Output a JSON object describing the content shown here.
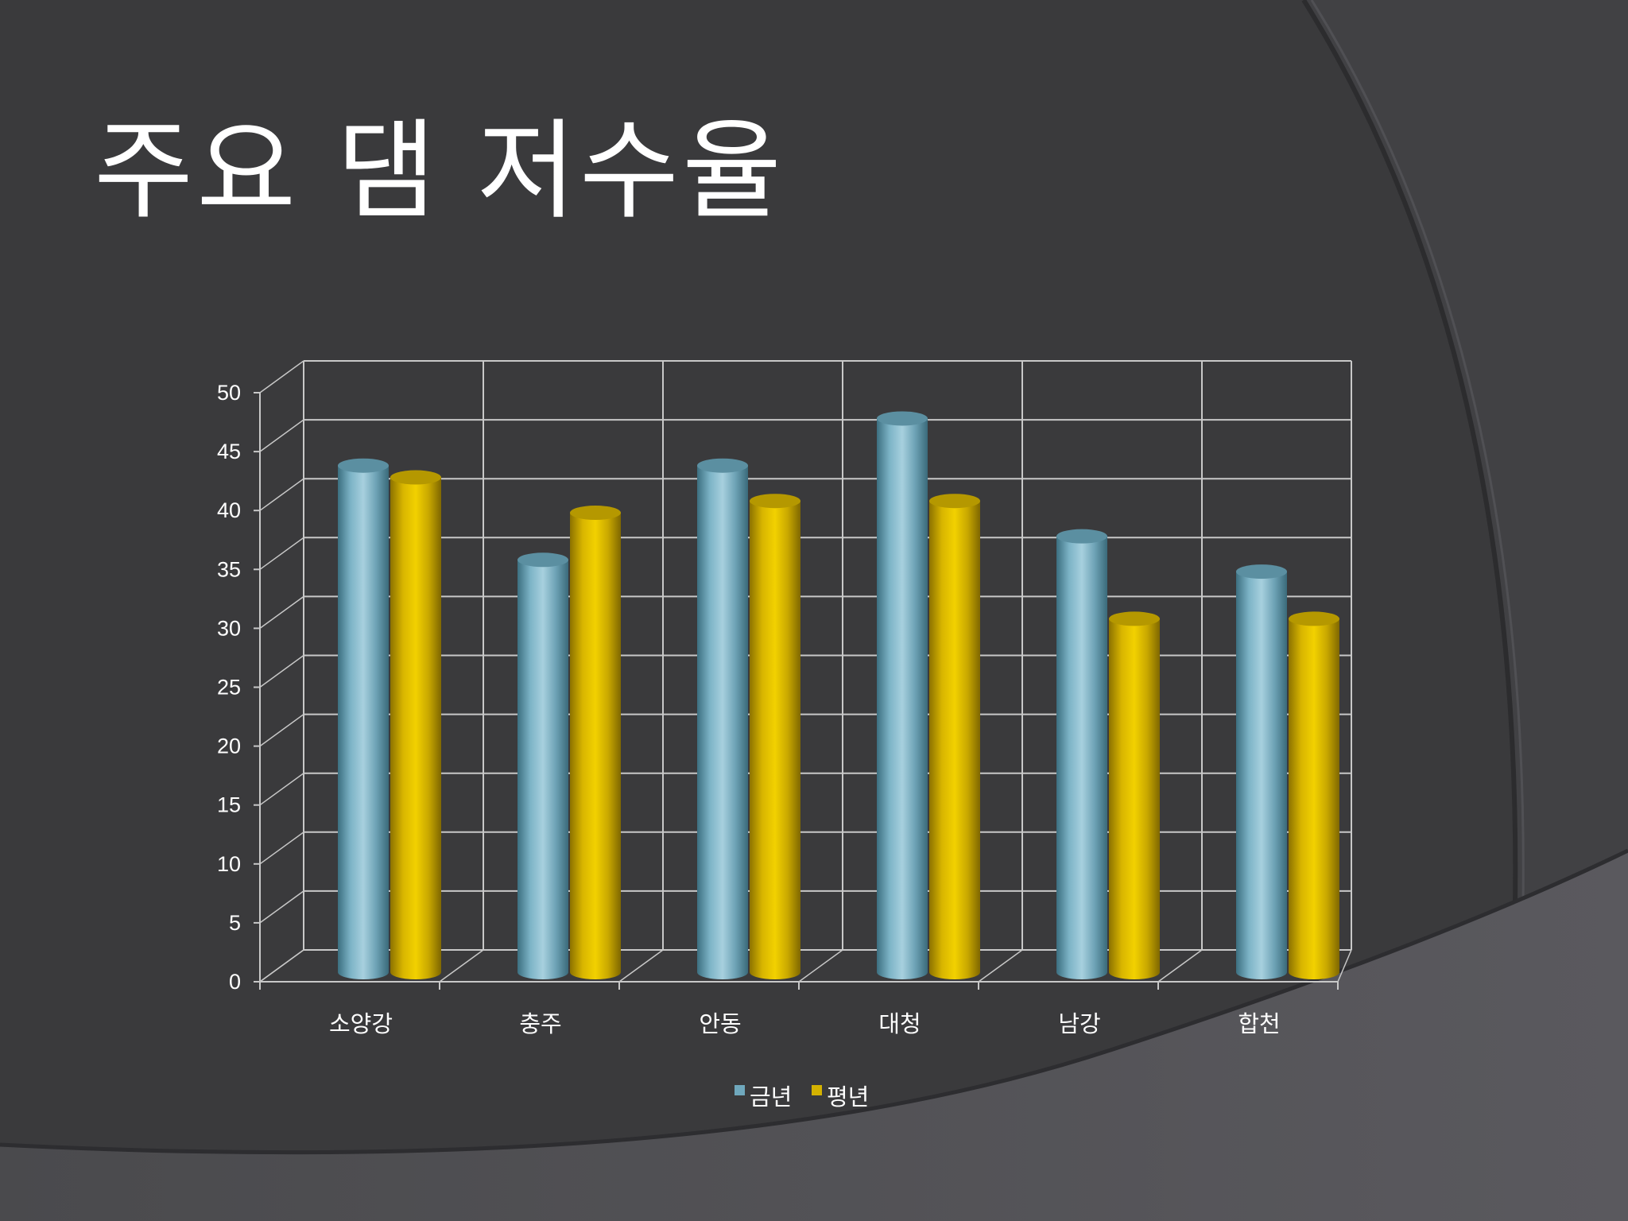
{
  "slide": {
    "title": "주요 댐 저수율"
  },
  "colors": {
    "background": "#3a3a3c",
    "series_current": "#6fa8bd",
    "series_normal": "#d4b200",
    "grid": "#c8c8c8",
    "text": "#ffffff"
  },
  "chart_data": {
    "type": "bar",
    "style": "3d-cylinder",
    "title": "",
    "categories": [
      "소양강",
      "충주",
      "안동",
      "대청",
      "남강",
      "합천"
    ],
    "series": [
      {
        "name": "금년",
        "color": "#6fa8bd",
        "values": [
          43,
          35,
          43,
          47,
          37,
          34
        ]
      },
      {
        "name": "평년",
        "color": "#d4b200",
        "values": [
          42,
          39,
          40,
          40,
          30,
          30
        ]
      }
    ],
    "ylim": [
      0,
      50
    ],
    "yticks": [
      0,
      5,
      10,
      15,
      20,
      25,
      30,
      35,
      40,
      45,
      50
    ],
    "grid": true,
    "legend_position": "bottom"
  }
}
